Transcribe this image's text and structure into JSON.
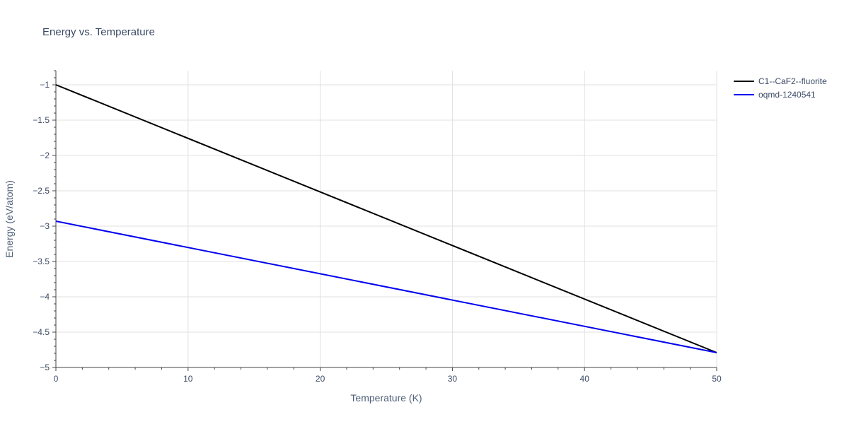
{
  "chart_data": {
    "type": "line",
    "title": "Energy vs. Temperature",
    "xlabel": "Temperature (K)",
    "ylabel": "Energy (eV/atom)",
    "xlim": [
      0,
      50
    ],
    "ylim": [
      -5,
      -0.8
    ],
    "xticks": [
      0,
      10,
      20,
      30,
      40,
      50
    ],
    "yticks": [
      -1,
      -1.5,
      -2,
      -2.5,
      -3,
      -3.5,
      -4,
      -4.5,
      -5
    ],
    "ytick_labels": [
      "−1",
      "−1.5",
      "−2",
      "−2.5",
      "−3",
      "−3.5",
      "−4",
      "−4.5",
      "−5"
    ],
    "grid": true,
    "legend_position": "top-right, outside plot",
    "series": [
      {
        "name": "C1--CaF2--fluorite",
        "color": "#000000",
        "x": [
          0,
          50
        ],
        "y": [
          -1.0,
          -4.79
        ]
      },
      {
        "name": "oqmd-1240541",
        "color": "#0000ee",
        "x": [
          0,
          50
        ],
        "y": [
          -2.93,
          -4.79
        ]
      }
    ]
  }
}
